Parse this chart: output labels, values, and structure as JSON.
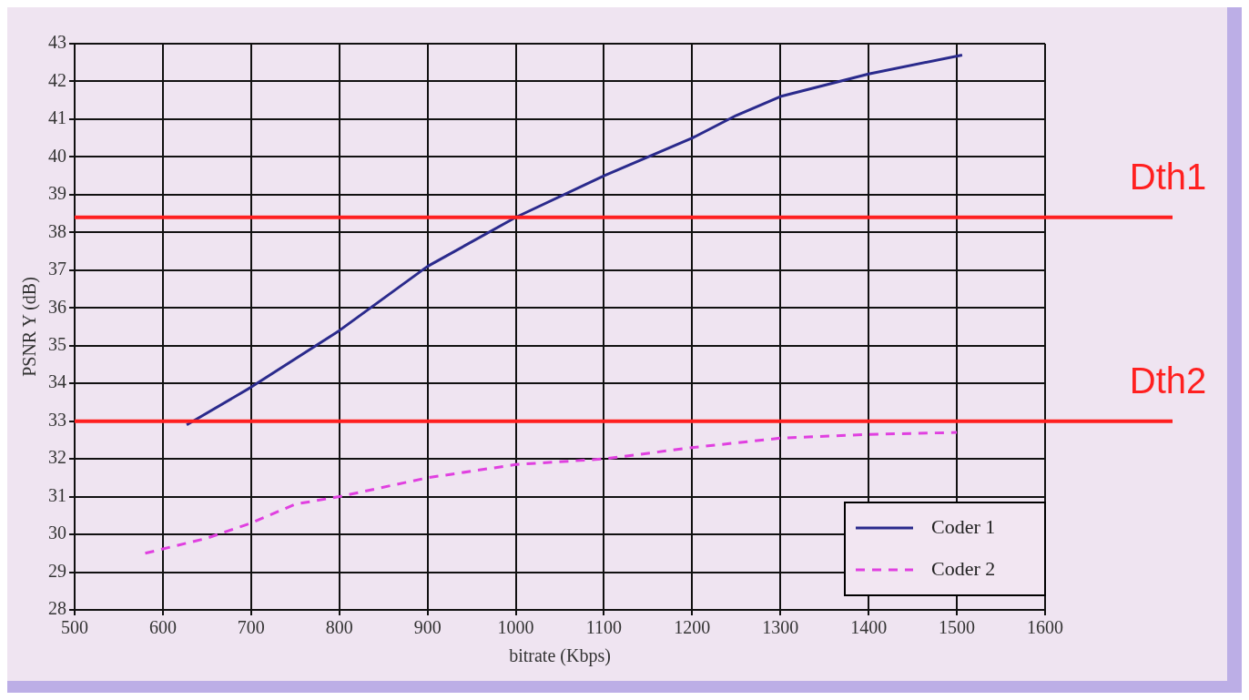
{
  "chart_data": {
    "type": "line",
    "xlabel": "bitrate (Kbps)",
    "ylabel": "PSNR Y (dB)",
    "xlim": [
      500,
      1600
    ],
    "xticks": [
      500,
      600,
      700,
      800,
      900,
      1000,
      1100,
      1200,
      1300,
      1400,
      1500,
      1600
    ],
    "ylim": [
      28,
      43
    ],
    "yticks": [
      28,
      29,
      30,
      31,
      32,
      33,
      34,
      35,
      36,
      37,
      38,
      39,
      40,
      41,
      42,
      43
    ],
    "grid": true,
    "legend": "bottom right",
    "marker": "none",
    "series": [
      {
        "name": "Coder 1",
        "color": "#2a2a8c",
        "line_style": "solid",
        "x": [
          627,
          700,
          800,
          900,
          1000,
          1100,
          1200,
          1250,
          1300,
          1400,
          1506
        ],
        "values": [
          32.9,
          33.9,
          35.4,
          37.1,
          38.4,
          39.5,
          40.5,
          41.1,
          41.6,
          42.2,
          42.7
        ]
      },
      {
        "name": "Coder 2",
        "color": "#e040e0",
        "line_style": "dashed",
        "x": [
          580,
          650,
          700,
          750,
          800,
          900,
          1000,
          1100,
          1200,
          1300,
          1400,
          1500
        ],
        "values": [
          29.5,
          29.9,
          30.3,
          30.8,
          31.0,
          31.5,
          31.85,
          32.0,
          32.3,
          32.55,
          32.65,
          32.7
        ]
      }
    ],
    "ref_lines": [
      {
        "axis": "y",
        "value": 38.4,
        "label": "Dth1",
        "color": "#ff2020"
      },
      {
        "axis": "y",
        "value": 33,
        "label": "Dth2",
        "color": "#ff2020"
      }
    ]
  }
}
